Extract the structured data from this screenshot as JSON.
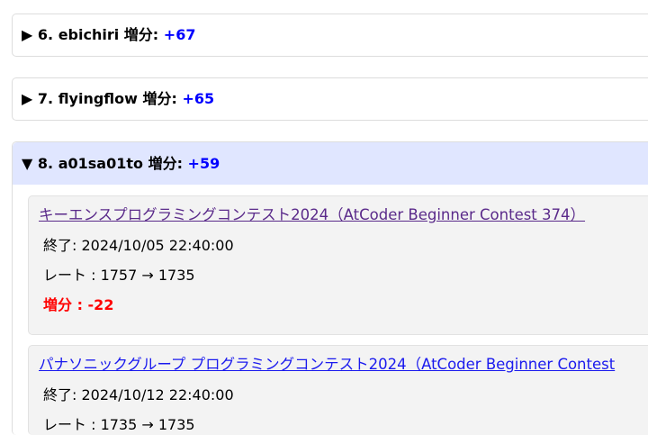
{
  "entries": [
    {
      "marker": "▶",
      "rank": "6.",
      "name": "ebichiri",
      "delta_label": "増分:",
      "delta": "+67"
    },
    {
      "marker": "▶",
      "rank": "7.",
      "name": "flyingflow",
      "delta_label": "増分:",
      "delta": "+65"
    },
    {
      "marker": "▼",
      "rank": "8.",
      "name": "a01sa01to",
      "delta_label": "増分:",
      "delta": "+59"
    }
  ],
  "contests": [
    {
      "title": "キーエンスプログラミングコンテスト2024（AtCoder Beginner Contest 374）",
      "end": "終了: 2024/10/05 22:40:00",
      "rate": "レート : 1757 → 1735",
      "delta": "増分 : -22"
    },
    {
      "title": "パナソニックグループ プログラミングコンテスト2024（AtCoder Beginner Contest",
      "end": "終了: 2024/10/12 22:40:00",
      "rate": "レート : 1735 → 1735"
    }
  ],
  "colors": {
    "positive": "#0000ff",
    "negative": "#ff0000",
    "open_summary_bg": "#e0e6ff"
  }
}
